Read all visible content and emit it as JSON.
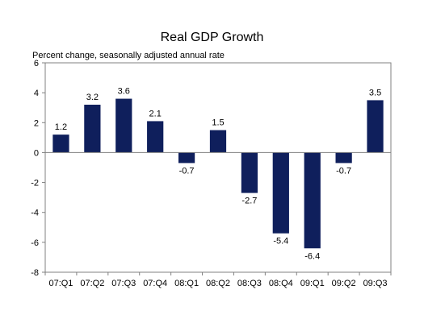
{
  "chart_data": {
    "type": "bar",
    "title": "Real GDP Growth",
    "subtitle": "Percent change, seasonally adjusted annual rate",
    "xlabel": "",
    "ylabel": "",
    "categories": [
      "07:Q1",
      "07:Q2",
      "07:Q3",
      "07:Q4",
      "08:Q1",
      "08:Q2",
      "08:Q3",
      "08:Q4",
      "09:Q1",
      "09:Q2",
      "09:Q3"
    ],
    "values": [
      1.2,
      3.2,
      3.6,
      2.1,
      -0.7,
      1.5,
      -2.7,
      -5.4,
      -6.4,
      -0.7,
      3.5
    ],
    "value_labels": [
      "1.2",
      "3.2",
      "3.6",
      "2.1",
      "-0.7",
      "1.5",
      "-2.7",
      "-5.4",
      "-6.4",
      "-0.7",
      "3.5"
    ],
    "ylim": [
      -8,
      6
    ],
    "yticks": [
      6,
      4,
      2,
      0,
      -2,
      -4,
      -6,
      -8
    ],
    "ytick_labels": [
      "6",
      "4",
      "2",
      "0",
      "-2",
      "-4",
      "-6",
      "-8"
    ],
    "grid": false,
    "legend": "none",
    "bar_color": "#0f1f5c"
  }
}
